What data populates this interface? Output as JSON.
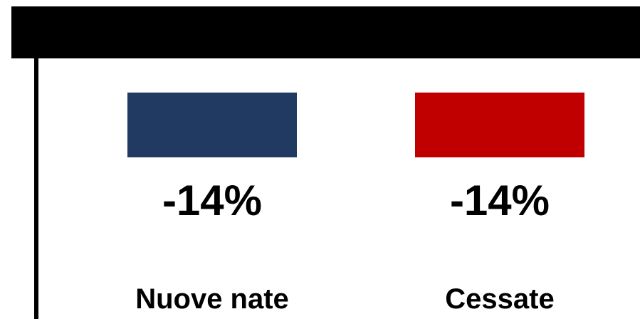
{
  "chart_data": {
    "type": "bar",
    "categories": [
      "Nuove nate",
      "Cessate"
    ],
    "values": [
      -14,
      -14
    ],
    "value_labels": [
      "-14%",
      "-14%"
    ],
    "unit": "%",
    "colors": [
      "#213a62",
      "#c00000"
    ],
    "title": "",
    "xlabel": "",
    "ylabel": "",
    "legend": "none",
    "grid": false
  }
}
